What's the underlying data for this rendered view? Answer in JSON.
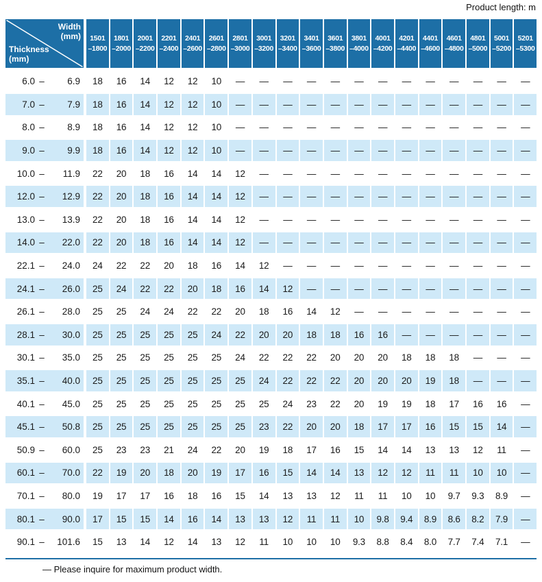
{
  "page": {
    "product_length_label": "Product length: m",
    "footnote": "— Please inquire for maximum product width."
  },
  "colors": {
    "header_blue": "#1d6fa6",
    "row_alt_blue": "#cfe9f8",
    "text": "#1a1a1a"
  },
  "table": {
    "corner": {
      "width_line1": "Width",
      "width_line2": "(mm)",
      "thickness_line1": "Thickness",
      "thickness_line2": "(mm)"
    },
    "range_separator": "–",
    "columns": [
      {
        "line1": "1501",
        "line2": "–1800"
      },
      {
        "line1": "1801",
        "line2": "–2000"
      },
      {
        "line1": "2001",
        "line2": "–2200"
      },
      {
        "line1": "2201",
        "line2": "–2400"
      },
      {
        "line1": "2401",
        "line2": "–2600"
      },
      {
        "line1": "2601",
        "line2": "–2800"
      },
      {
        "line1": "2801",
        "line2": "–3000"
      },
      {
        "line1": "3001",
        "line2": "–3200"
      },
      {
        "line1": "3201",
        "line2": "–3400"
      },
      {
        "line1": "3401",
        "line2": "–3600"
      },
      {
        "line1": "3601",
        "line2": "–3800"
      },
      {
        "line1": "3801",
        "line2": "–4000"
      },
      {
        "line1": "4001",
        "line2": "–4200"
      },
      {
        "line1": "4201",
        "line2": "–4400"
      },
      {
        "line1": "4401",
        "line2": "–4600"
      },
      {
        "line1": "4601",
        "line2": "–4800"
      },
      {
        "line1": "4801",
        "line2": "–5000"
      },
      {
        "line1": "5001",
        "line2": "–5200"
      },
      {
        "line1": "5201",
        "line2": "–5300"
      }
    ],
    "rows": [
      {
        "from": "6.0",
        "to": "6.9",
        "values": [
          "18",
          "16",
          "14",
          "12",
          "12",
          "10",
          "—",
          "—",
          "—",
          "—",
          "—",
          "—",
          "—",
          "—",
          "—",
          "—",
          "—",
          "—",
          "—"
        ]
      },
      {
        "from": "7.0",
        "to": "7.9",
        "values": [
          "18",
          "16",
          "14",
          "12",
          "12",
          "10",
          "—",
          "—",
          "—",
          "—",
          "—",
          "—",
          "—",
          "—",
          "—",
          "—",
          "—",
          "—",
          "—"
        ]
      },
      {
        "from": "8.0",
        "to": "8.9",
        "values": [
          "18",
          "16",
          "14",
          "12",
          "12",
          "10",
          "—",
          "—",
          "—",
          "—",
          "—",
          "—",
          "—",
          "—",
          "—",
          "—",
          "—",
          "—",
          "—"
        ]
      },
      {
        "from": "9.0",
        "to": "9.9",
        "values": [
          "18",
          "16",
          "14",
          "12",
          "12",
          "10",
          "—",
          "—",
          "—",
          "—",
          "—",
          "—",
          "—",
          "—",
          "—",
          "—",
          "—",
          "—",
          "—"
        ]
      },
      {
        "from": "10.0",
        "to": "11.9",
        "values": [
          "22",
          "20",
          "18",
          "16",
          "14",
          "14",
          "12",
          "—",
          "—",
          "—",
          "—",
          "—",
          "—",
          "—",
          "—",
          "—",
          "—",
          "—",
          "—"
        ]
      },
      {
        "from": "12.0",
        "to": "12.9",
        "values": [
          "22",
          "20",
          "18",
          "16",
          "14",
          "14",
          "12",
          "—",
          "—",
          "—",
          "—",
          "—",
          "—",
          "—",
          "—",
          "—",
          "—",
          "—",
          "—"
        ]
      },
      {
        "from": "13.0",
        "to": "13.9",
        "values": [
          "22",
          "20",
          "18",
          "16",
          "14",
          "14",
          "12",
          "—",
          "—",
          "—",
          "—",
          "—",
          "—",
          "—",
          "—",
          "—",
          "—",
          "—",
          "—"
        ]
      },
      {
        "from": "14.0",
        "to": "22.0",
        "values": [
          "22",
          "20",
          "18",
          "16",
          "14",
          "14",
          "12",
          "—",
          "—",
          "—",
          "—",
          "—",
          "—",
          "—",
          "—",
          "—",
          "—",
          "—",
          "—"
        ]
      },
      {
        "from": "22.1",
        "to": "24.0",
        "values": [
          "24",
          "22",
          "22",
          "20",
          "18",
          "16",
          "14",
          "12",
          "—",
          "—",
          "—",
          "—",
          "—",
          "—",
          "—",
          "—",
          "—",
          "—",
          "—"
        ]
      },
      {
        "from": "24.1",
        "to": "26.0",
        "values": [
          "25",
          "24",
          "22",
          "22",
          "20",
          "18",
          "16",
          "14",
          "12",
          "—",
          "—",
          "—",
          "—",
          "—",
          "—",
          "—",
          "—",
          "—",
          "—"
        ]
      },
      {
        "from": "26.1",
        "to": "28.0",
        "values": [
          "25",
          "25",
          "24",
          "24",
          "22",
          "22",
          "20",
          "18",
          "16",
          "14",
          "12",
          "—",
          "—",
          "—",
          "—",
          "—",
          "—",
          "—",
          "—"
        ]
      },
      {
        "from": "28.1",
        "to": "30.0",
        "values": [
          "25",
          "25",
          "25",
          "25",
          "25",
          "24",
          "22",
          "20",
          "20",
          "18",
          "18",
          "16",
          "16",
          "—",
          "—",
          "—",
          "—",
          "—",
          "—"
        ]
      },
      {
        "from": "30.1",
        "to": "35.0",
        "values": [
          "25",
          "25",
          "25",
          "25",
          "25",
          "25",
          "24",
          "22",
          "22",
          "22",
          "20",
          "20",
          "20",
          "18",
          "18",
          "18",
          "—",
          "—",
          "—"
        ]
      },
      {
        "from": "35.1",
        "to": "40.0",
        "values": [
          "25",
          "25",
          "25",
          "25",
          "25",
          "25",
          "25",
          "24",
          "22",
          "22",
          "22",
          "20",
          "20",
          "20",
          "19",
          "18",
          "—",
          "—",
          "—"
        ]
      },
      {
        "from": "40.1",
        "to": "45.0",
        "values": [
          "25",
          "25",
          "25",
          "25",
          "25",
          "25",
          "25",
          "25",
          "24",
          "23",
          "22",
          "20",
          "19",
          "19",
          "18",
          "17",
          "16",
          "16",
          "—"
        ]
      },
      {
        "from": "45.1",
        "to": "50.8",
        "values": [
          "25",
          "25",
          "25",
          "25",
          "25",
          "25",
          "25",
          "23",
          "22",
          "20",
          "20",
          "18",
          "17",
          "17",
          "16",
          "15",
          "15",
          "14",
          "—"
        ]
      },
      {
        "from": "50.9",
        "to": "60.0",
        "values": [
          "25",
          "23",
          "23",
          "21",
          "24",
          "22",
          "20",
          "19",
          "18",
          "17",
          "16",
          "15",
          "14",
          "14",
          "13",
          "13",
          "12",
          "11",
          "—"
        ]
      },
      {
        "from": "60.1",
        "to": "70.0",
        "values": [
          "22",
          "19",
          "20",
          "18",
          "20",
          "19",
          "17",
          "16",
          "15",
          "14",
          "14",
          "13",
          "12",
          "12",
          "11",
          "11",
          "10",
          "10",
          "—"
        ]
      },
      {
        "from": "70.1",
        "to": "80.0",
        "values": [
          "19",
          "17",
          "17",
          "16",
          "18",
          "16",
          "15",
          "14",
          "13",
          "13",
          "12",
          "11",
          "11",
          "10",
          "10",
          "9.7",
          "9.3",
          "8.9",
          "—"
        ]
      },
      {
        "from": "80.1",
        "to": "90.0",
        "values": [
          "17",
          "15",
          "15",
          "14",
          "16",
          "14",
          "13",
          "13",
          "12",
          "11",
          "11",
          "10",
          "9.8",
          "9.4",
          "8.9",
          "8.6",
          "8.2",
          "7.9",
          "—"
        ]
      },
      {
        "from": "90.1",
        "to": "101.6",
        "values": [
          "15",
          "13",
          "14",
          "12",
          "14",
          "13",
          "12",
          "11",
          "10",
          "10",
          "10",
          "9.3",
          "8.8",
          "8.4",
          "8.0",
          "7.7",
          "7.4",
          "7.1",
          "—"
        ]
      }
    ]
  }
}
